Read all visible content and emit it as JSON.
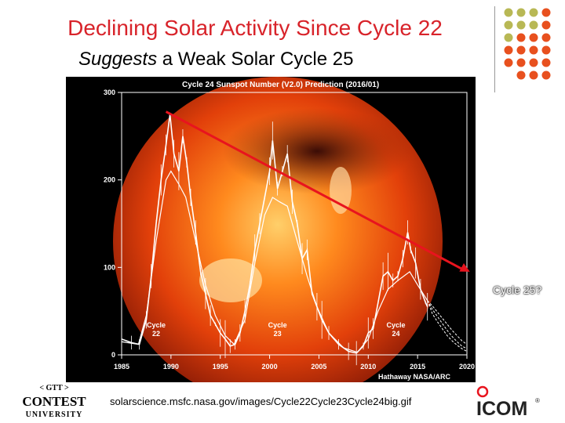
{
  "slide": {
    "title": "Declining Solar Activity Since Cycle 22",
    "subtitle_em": "Suggests",
    "subtitle_rest": " a Weak Solar Cycle 25",
    "source_url": "solarscience.msfc.nasa.gov/images/Cycle22Cycle23Cycle24big.gif",
    "annotation": "Cycle 25?",
    "logo_left_top": "< GTT >",
    "logo_left_main": "CONTEST",
    "logo_left_sub": "UNIVERSITY",
    "logo_right": "ICOM",
    "logo_right_mark": "®",
    "colors": {
      "title": "#d8232a",
      "accent_dots_orange": "#e8501e",
      "accent_dots_olive": "#b8b855",
      "trend_line": "#e8141e"
    }
  },
  "chart_data": {
    "type": "line",
    "title": "Cycle 24 Sunspot Number (V2.0) Prediction (2016/01)",
    "credit": "Hathaway NASA/ARC",
    "xlim": [
      1985,
      2020
    ],
    "ylim": [
      0,
      300
    ],
    "xticks": [
      "1985",
      "1990",
      "1995",
      "2000",
      "2005",
      "2010",
      "2015",
      "2020"
    ],
    "yticks": [
      "0",
      "100",
      "200",
      "300"
    ],
    "cycle_labels": [
      {
        "text": "Cycle",
        "num": "22",
        "x": 1988.5
      },
      {
        "text": "Cycle",
        "num": "23",
        "x": 2000.8
      },
      {
        "text": "Cycle",
        "num": "24",
        "x": 2012.8
      }
    ],
    "series": [
      {
        "values": [
          [
            1985.0,
            18
          ],
          [
            1986.0,
            14
          ],
          [
            1986.8,
            12
          ],
          [
            1987.5,
            40
          ],
          [
            1988.0,
            90
          ],
          [
            1988.5,
            150
          ],
          [
            1989.0,
            200
          ],
          [
            1989.5,
            240
          ],
          [
            1989.9,
            275
          ],
          [
            1990.3,
            230
          ],
          [
            1990.8,
            210
          ],
          [
            1991.2,
            250
          ],
          [
            1991.6,
            220
          ],
          [
            1992.0,
            180
          ],
          [
            1992.5,
            140
          ],
          [
            1993.0,
            95
          ],
          [
            1993.5,
            70
          ],
          [
            1994.0,
            45
          ],
          [
            1994.5,
            35
          ],
          [
            1995.0,
            25
          ],
          [
            1995.5,
            18
          ],
          [
            1996.0,
            10
          ],
          [
            1996.5,
            12
          ],
          [
            1997.0,
            25
          ],
          [
            1997.5,
            50
          ],
          [
            1998.0,
            80
          ],
          [
            1998.5,
            120
          ],
          [
            1999.0,
            150
          ],
          [
            1999.5,
            180
          ],
          [
            2000.0,
            210
          ],
          [
            2000.3,
            245
          ],
          [
            2000.8,
            190
          ],
          [
            2001.3,
            210
          ],
          [
            2001.8,
            230
          ],
          [
            2002.3,
            175
          ],
          [
            2002.8,
            150
          ],
          [
            2003.3,
            110
          ],
          [
            2003.8,
            120
          ],
          [
            2004.3,
            70
          ],
          [
            2004.8,
            55
          ],
          [
            2005.3,
            40
          ],
          [
            2006.0,
            25
          ],
          [
            2007.0,
            12
          ],
          [
            2008.0,
            4
          ],
          [
            2008.8,
            2
          ],
          [
            2009.5,
            10
          ],
          [
            2010.0,
            25
          ],
          [
            2010.5,
            30
          ],
          [
            2011.0,
            60
          ],
          [
            2011.5,
            90
          ],
          [
            2012.0,
            95
          ],
          [
            2012.5,
            85
          ],
          [
            2013.0,
            90
          ],
          [
            2013.5,
            110
          ],
          [
            2014.0,
            140
          ],
          [
            2014.3,
            120
          ],
          [
            2014.8,
            105
          ],
          [
            2015.3,
            75
          ],
          [
            2015.8,
            60
          ],
          [
            2016.0,
            55
          ]
        ]
      },
      {
        "values": [
          [
            1985.0,
            15
          ],
          [
            1986.7,
            12
          ],
          [
            1987.5,
            45
          ],
          [
            1988.5,
            130
          ],
          [
            1989.5,
            200
          ],
          [
            1990.0,
            210
          ],
          [
            1990.8,
            195
          ],
          [
            1991.5,
            180
          ],
          [
            1992.5,
            130
          ],
          [
            1993.5,
            80
          ],
          [
            1994.5,
            45
          ],
          [
            1995.5,
            22
          ],
          [
            1996.4,
            12
          ],
          [
            1997.5,
            40
          ],
          [
            1998.5,
            105
          ],
          [
            1999.5,
            160
          ],
          [
            2000.3,
            180
          ],
          [
            2001.0,
            175
          ],
          [
            2001.8,
            170
          ],
          [
            2002.8,
            130
          ],
          [
            2003.8,
            90
          ],
          [
            2004.8,
            55
          ],
          [
            2006.0,
            25
          ],
          [
            2007.5,
            8
          ],
          [
            2008.9,
            3
          ],
          [
            2010.0,
            18
          ],
          [
            2011.0,
            50
          ],
          [
            2012.0,
            75
          ],
          [
            2013.0,
            85
          ],
          [
            2014.2,
            95
          ],
          [
            2015.0,
            80
          ],
          [
            2016.0,
            62
          ]
        ]
      },
      {
        "values": [
          [
            2016.0,
            62
          ],
          [
            2016.5,
            52
          ],
          [
            2017.0,
            44
          ],
          [
            2017.5,
            36
          ],
          [
            2018.0,
            28
          ],
          [
            2018.5,
            21
          ],
          [
            2019.0,
            15
          ],
          [
            2019.5,
            10
          ],
          [
            2020.0,
            7
          ]
        ]
      },
      {
        "values": [
          [
            2016.0,
            62
          ],
          [
            2016.5,
            56
          ],
          [
            2017.0,
            49
          ],
          [
            2017.5,
            42
          ],
          [
            2018.0,
            35
          ],
          [
            2018.5,
            28
          ],
          [
            2019.0,
            22
          ],
          [
            2019.5,
            16
          ],
          [
            2020.0,
            12
          ]
        ]
      },
      {
        "values": [
          [
            2016.0,
            62
          ],
          [
            2016.5,
            47
          ],
          [
            2017.0,
            38
          ],
          [
            2017.5,
            30
          ],
          [
            2018.0,
            22
          ],
          [
            2018.5,
            16
          ],
          [
            2019.0,
            11
          ],
          [
            2019.5,
            7
          ],
          [
            2020.0,
            4
          ]
        ]
      }
    ],
    "trend_line": [
      [
        1989.5,
        278
      ],
      [
        2020.3,
        95
      ]
    ]
  }
}
